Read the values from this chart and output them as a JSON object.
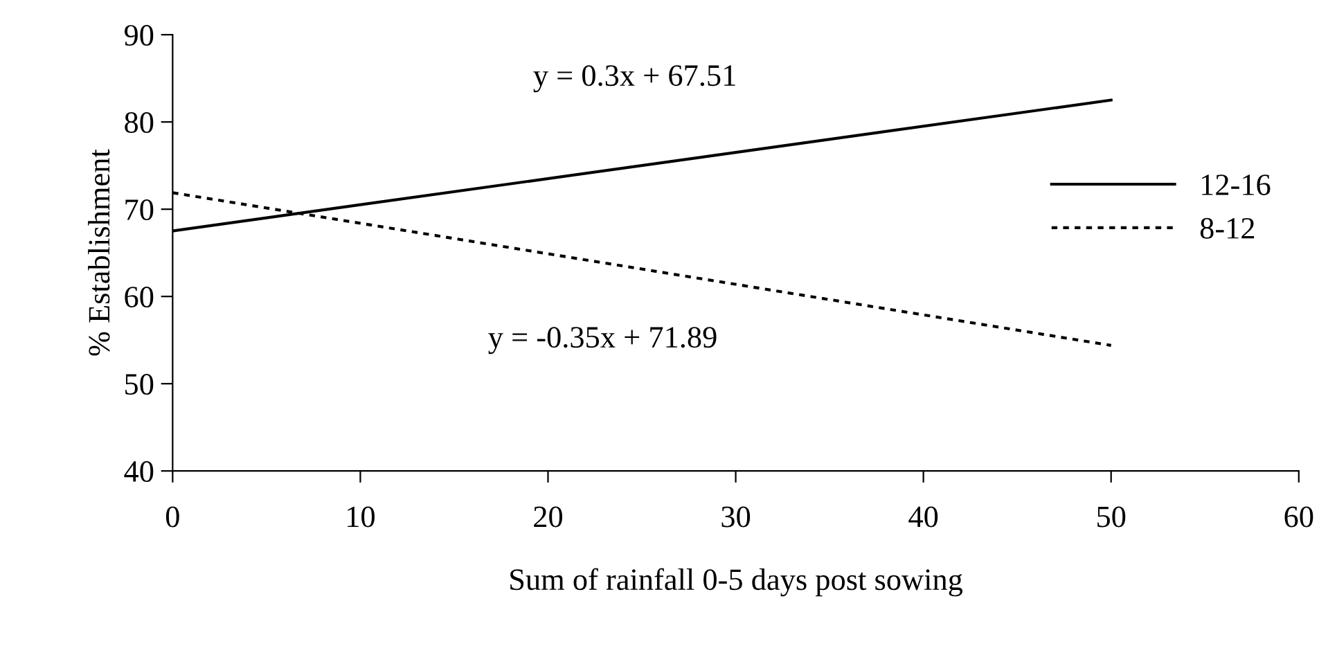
{
  "chart_data": {
    "type": "line",
    "xlabel": "Sum of rainfall 0-5 days post sowing",
    "ylabel": "% Establishment",
    "x": [
      0,
      50
    ],
    "series": [
      {
        "name": "12-16",
        "color": "#000000",
        "values": [
          67.51,
          82.51
        ],
        "line_style": "solid"
      },
      {
        "name": "8-12",
        "color": "#000000",
        "values": [
          71.89,
          54.39
        ],
        "line_style": "dotted"
      }
    ],
    "xlim": [
      0,
      60
    ],
    "xticks": [
      0,
      10,
      20,
      30,
      40,
      50,
      60
    ],
    "ylim": [
      40,
      90
    ],
    "yticks": [
      40,
      50,
      60,
      70,
      80,
      90
    ],
    "annotations": [
      "y = 0.3x + 67.51",
      "y = -0.35x + 71.89"
    ],
    "legend": "right",
    "grid": false,
    "marker": "none"
  }
}
